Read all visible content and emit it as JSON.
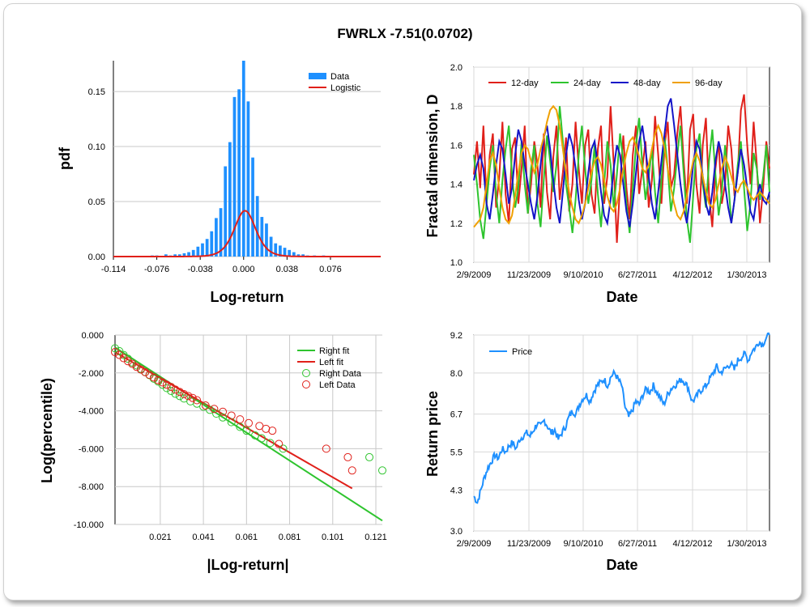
{
  "title": "FWRLX -7.51(0.0702)",
  "chart_data": [
    {
      "type": "bar",
      "name": "pdf",
      "xlabel": "Log-return",
      "ylabel": "pdf",
      "xticks": [
        "-0.114",
        "-0.076",
        "-0.038",
        "0.000",
        "0.038",
        "0.076"
      ],
      "xtick_values": [
        -0.114,
        -0.076,
        -0.038,
        0.0,
        0.038,
        0.076
      ],
      "yticks": [
        "0.00",
        "0.05",
        "0.10",
        "0.15"
      ],
      "ytick_values": [
        0.0,
        0.05,
        0.1,
        0.15
      ],
      "xlim": [
        -0.114,
        0.12
      ],
      "ylim": [
        0,
        0.178
      ],
      "legend": [
        "Data",
        "Logistic"
      ],
      "colors": {
        "Data": "#1e90ff",
        "Logistic": "#e0201a"
      },
      "bins": [
        {
          "x": -0.08,
          "y": 0.001
        },
        {
          "x": -0.076,
          "y": 0.001
        },
        {
          "x": -0.072,
          "y": 0.0
        },
        {
          "x": -0.068,
          "y": 0.002
        },
        {
          "x": -0.064,
          "y": 0.001
        },
        {
          "x": -0.06,
          "y": 0.002
        },
        {
          "x": -0.056,
          "y": 0.002
        },
        {
          "x": -0.052,
          "y": 0.003
        },
        {
          "x": -0.048,
          "y": 0.004
        },
        {
          "x": -0.044,
          "y": 0.006
        },
        {
          "x": -0.04,
          "y": 0.009
        },
        {
          "x": -0.036,
          "y": 0.012
        },
        {
          "x": -0.032,
          "y": 0.016
        },
        {
          "x": -0.028,
          "y": 0.023
        },
        {
          "x": -0.024,
          "y": 0.035
        },
        {
          "x": -0.02,
          "y": 0.044
        },
        {
          "x": -0.016,
          "y": 0.082
        },
        {
          "x": -0.012,
          "y": 0.104
        },
        {
          "x": -0.008,
          "y": 0.145
        },
        {
          "x": -0.004,
          "y": 0.152
        },
        {
          "x": 0.0,
          "y": 0.178
        },
        {
          "x": 0.004,
          "y": 0.141
        },
        {
          "x": 0.008,
          "y": 0.09
        },
        {
          "x": 0.012,
          "y": 0.055
        },
        {
          "x": 0.016,
          "y": 0.036
        },
        {
          "x": 0.02,
          "y": 0.03
        },
        {
          "x": 0.024,
          "y": 0.018
        },
        {
          "x": 0.028,
          "y": 0.012
        },
        {
          "x": 0.032,
          "y": 0.01
        },
        {
          "x": 0.036,
          "y": 0.008
        },
        {
          "x": 0.04,
          "y": 0.006
        },
        {
          "x": 0.044,
          "y": 0.004
        },
        {
          "x": 0.048,
          "y": 0.002
        },
        {
          "x": 0.052,
          "y": 0.002
        },
        {
          "x": 0.056,
          "y": 0.001
        },
        {
          "x": 0.062,
          "y": 0.001
        },
        {
          "x": 0.07,
          "y": 0.001
        }
      ],
      "bin_width": 0.0035,
      "logistic": {
        "mu": 0.0012,
        "s": 0.0063
      }
    },
    {
      "type": "line",
      "name": "fractal",
      "xlabel": "Date",
      "ylabel": "Fractal dimension, D",
      "xticks": [
        "2/9/2009",
        "11/23/2009",
        "9/10/2010",
        "6/27/2011",
        "4/12/2012",
        "1/30/2013"
      ],
      "yticks": [
        "1.0",
        "1.2",
        "1.4",
        "1.6",
        "1.8",
        "2.0"
      ],
      "ytick_values": [
        1.0,
        1.2,
        1.4,
        1.6,
        1.8,
        2.0
      ],
      "ylim": [
        1.0,
        2.0
      ],
      "xlim": [
        0,
        1096
      ],
      "xtick_values": [
        0,
        287,
        578,
        868,
        1158,
        1450
      ],
      "series": [
        {
          "name": "12-day",
          "color": "#e0201a",
          "values": [
            1.45,
            1.62,
            1.38,
            1.7,
            1.3,
            1.55,
            1.66,
            1.28,
            1.44,
            1.72,
            1.35,
            1.2,
            1.58,
            1.64,
            1.3,
            1.48,
            1.7,
            1.25,
            1.4,
            1.62,
            1.5,
            1.28,
            1.66,
            1.36,
            1.22,
            1.54,
            1.7,
            1.32,
            1.46,
            1.64,
            1.26,
            1.4,
            1.72,
            1.48,
            1.3,
            1.6,
            1.68,
            1.35,
            1.25,
            1.58,
            1.7,
            1.3,
            1.44,
            1.8,
            1.5,
            1.1,
            1.4,
            1.65,
            1.38,
            1.22,
            1.55,
            1.7,
            1.35,
            1.48,
            1.62,
            1.28,
            1.42,
            1.75,
            1.55,
            1.3,
            1.6,
            1.72,
            1.38,
            1.45,
            1.66,
            1.8,
            1.52,
            1.3,
            1.68,
            1.76,
            1.4,
            1.25,
            1.6,
            1.74,
            1.34,
            1.18,
            1.48,
            1.62,
            1.3,
            1.4,
            1.7,
            1.58,
            1.34,
            1.46,
            1.78,
            1.86,
            1.6,
            1.4,
            1.72,
            1.5,
            1.2,
            1.38,
            1.62,
            1.48
          ]
        },
        {
          "name": "24-day",
          "color": "#2ec42e",
          "values": [
            1.55,
            1.4,
            1.22,
            1.12,
            1.3,
            1.48,
            1.6,
            1.35,
            1.2,
            1.42,
            1.58,
            1.7,
            1.45,
            1.28,
            1.38,
            1.62,
            1.4,
            1.25,
            1.48,
            1.6,
            1.3,
            1.18,
            1.42,
            1.65,
            1.52,
            1.36,
            1.5,
            1.8,
            1.62,
            1.4,
            1.28,
            1.15,
            1.32,
            1.55,
            1.7,
            1.48,
            1.3,
            1.42,
            1.6,
            1.35,
            1.18,
            1.4,
            1.62,
            1.5,
            1.28,
            1.45,
            1.66,
            1.52,
            1.3,
            1.15,
            1.38,
            1.6,
            1.74,
            1.5,
            1.32,
            1.44,
            1.58,
            1.36,
            1.2,
            1.42,
            1.64,
            1.48,
            1.26,
            1.38,
            1.55,
            1.7,
            1.46,
            1.22,
            1.1,
            1.34,
            1.58,
            1.66,
            1.4,
            1.28,
            1.52,
            1.68,
            1.45,
            1.24,
            1.36,
            1.6,
            1.42,
            1.2,
            1.32,
            1.5,
            1.62,
            1.38,
            1.16,
            1.3,
            1.56,
            1.48,
            1.32,
            1.44,
            1.6,
            1.36
          ]
        },
        {
          "name": "48-day",
          "color": "#1414c8",
          "values": [
            1.42,
            1.5,
            1.55,
            1.48,
            1.3,
            1.22,
            1.35,
            1.5,
            1.62,
            1.58,
            1.45,
            1.3,
            1.38,
            1.55,
            1.68,
            1.62,
            1.5,
            1.4,
            1.3,
            1.22,
            1.34,
            1.5,
            1.64,
            1.7,
            1.58,
            1.42,
            1.28,
            1.2,
            1.36,
            1.55,
            1.66,
            1.6,
            1.48,
            1.32,
            1.22,
            1.3,
            1.46,
            1.58,
            1.62,
            1.5,
            1.36,
            1.24,
            1.2,
            1.32,
            1.48,
            1.6,
            1.55,
            1.4,
            1.26,
            1.18,
            1.3,
            1.46,
            1.62,
            1.7,
            1.58,
            1.44,
            1.3,
            1.22,
            1.36,
            1.52,
            1.66,
            1.8,
            1.84,
            1.7,
            1.55,
            1.4,
            1.28,
            1.2,
            1.34,
            1.5,
            1.62,
            1.58,
            1.44,
            1.3,
            1.24,
            1.36,
            1.52,
            1.62,
            1.55,
            1.4,
            1.28,
            1.2,
            1.32,
            1.46,
            1.58,
            1.5,
            1.38,
            1.26,
            1.22,
            1.34,
            1.4,
            1.32,
            1.3,
            1.36
          ]
        },
        {
          "name": "96-day",
          "color": "#f0a000",
          "values": [
            1.18,
            1.2,
            1.22,
            1.28,
            1.4,
            1.52,
            1.56,
            1.5,
            1.38,
            1.28,
            1.22,
            1.2,
            1.24,
            1.34,
            1.46,
            1.56,
            1.6,
            1.58,
            1.52,
            1.46,
            1.5,
            1.58,
            1.64,
            1.72,
            1.78,
            1.8,
            1.78,
            1.7,
            1.58,
            1.46,
            1.36,
            1.28,
            1.22,
            1.2,
            1.24,
            1.3,
            1.38,
            1.46,
            1.52,
            1.54,
            1.5,
            1.42,
            1.34,
            1.28,
            1.26,
            1.3,
            1.38,
            1.48,
            1.56,
            1.62,
            1.64,
            1.6,
            1.54,
            1.48,
            1.46,
            1.5,
            1.58,
            1.66,
            1.7,
            1.66,
            1.58,
            1.48,
            1.38,
            1.3,
            1.24,
            1.22,
            1.26,
            1.34,
            1.44,
            1.52,
            1.56,
            1.52,
            1.44,
            1.36,
            1.3,
            1.28,
            1.32,
            1.4,
            1.48,
            1.54,
            1.5,
            1.44,
            1.38,
            1.36,
            1.4,
            1.42,
            1.38,
            1.34,
            1.32,
            1.34,
            1.36,
            1.34,
            1.32,
            1.3
          ]
        }
      ]
    },
    {
      "type": "scatter",
      "name": "tails",
      "xlabel": "|Log-return|",
      "ylabel": "Log(percentile)",
      "xticks": [
        "0.021",
        "0.041",
        "0.061",
        "0.081",
        "0.101",
        "0.121"
      ],
      "xtick_values": [
        0.021,
        0.041,
        0.061,
        0.081,
        0.101,
        0.121
      ],
      "yticks": [
        "0.000",
        "-2.000",
        "-4.000",
        "-6.000",
        "-8.000",
        "-10.000"
      ],
      "ytick_values": [
        0,
        -2,
        -4,
        -6,
        -8,
        -10
      ],
      "xlim": [
        0.0,
        0.124
      ],
      "ylim": [
        -10.0,
        0.0
      ],
      "legend": [
        "Right fit",
        "Left fit",
        "Right Data",
        "Left Data"
      ],
      "colors": {
        "right": "#2ec42e",
        "left": "#e0201a"
      },
      "right_fit": [
        [
          0.0,
          -0.65
        ],
        [
          0.124,
          -9.8
        ]
      ],
      "left_fit": [
        [
          0.0,
          -0.9
        ],
        [
          0.11,
          -8.1
        ]
      ],
      "right_data": [
        [
          0.0,
          -0.7
        ],
        [
          0.002,
          -0.85
        ],
        [
          0.004,
          -1.05
        ],
        [
          0.006,
          -1.25
        ],
        [
          0.008,
          -1.45
        ],
        [
          0.01,
          -1.6
        ],
        [
          0.012,
          -1.78
        ],
        [
          0.014,
          -1.95
        ],
        [
          0.016,
          -2.12
        ],
        [
          0.018,
          -2.3
        ],
        [
          0.02,
          -2.45
        ],
        [
          0.022,
          -2.62
        ],
        [
          0.024,
          -2.8
        ],
        [
          0.026,
          -2.95
        ],
        [
          0.028,
          -3.1
        ],
        [
          0.03,
          -3.22
        ],
        [
          0.032,
          -3.35
        ],
        [
          0.035,
          -3.5
        ],
        [
          0.038,
          -3.62
        ],
        [
          0.041,
          -3.78
        ],
        [
          0.044,
          -3.95
        ],
        [
          0.047,
          -4.15
        ],
        [
          0.05,
          -4.35
        ],
        [
          0.054,
          -4.6
        ],
        [
          0.058,
          -4.85
        ],
        [
          0.061,
          -5.05
        ],
        [
          0.065,
          -5.3
        ],
        [
          0.068,
          -5.45
        ],
        [
          0.072,
          -5.7
        ],
        [
          0.078,
          -6.0
        ],
        [
          0.118,
          -6.45
        ],
        [
          0.124,
          -7.15
        ]
      ],
      "left_data": [
        [
          0.0,
          -0.9
        ],
        [
          0.002,
          -1.05
        ],
        [
          0.004,
          -1.22
        ],
        [
          0.006,
          -1.38
        ],
        [
          0.008,
          -1.52
        ],
        [
          0.01,
          -1.68
        ],
        [
          0.012,
          -1.82
        ],
        [
          0.014,
          -1.96
        ],
        [
          0.016,
          -2.1
        ],
        [
          0.018,
          -2.24
        ],
        [
          0.02,
          -2.38
        ],
        [
          0.022,
          -2.5
        ],
        [
          0.024,
          -2.62
        ],
        [
          0.026,
          -2.74
        ],
        [
          0.028,
          -2.88
        ],
        [
          0.03,
          -3.0
        ],
        [
          0.032,
          -3.12
        ],
        [
          0.034,
          -3.22
        ],
        [
          0.036,
          -3.32
        ],
        [
          0.038,
          -3.44
        ],
        [
          0.042,
          -3.72
        ],
        [
          0.046,
          -3.9
        ],
        [
          0.05,
          -4.05
        ],
        [
          0.054,
          -4.25
        ],
        [
          0.058,
          -4.45
        ],
        [
          0.062,
          -4.65
        ],
        [
          0.067,
          -4.8
        ],
        [
          0.07,
          -4.95
        ],
        [
          0.073,
          -5.05
        ],
        [
          0.076,
          -5.75
        ],
        [
          0.098,
          -6.0
        ],
        [
          0.108,
          -6.45
        ],
        [
          0.11,
          -7.15
        ]
      ]
    },
    {
      "type": "line",
      "name": "price",
      "xlabel": "Date",
      "ylabel": "Return price",
      "xticks": [
        "2/9/2009",
        "11/23/2009",
        "9/10/2010",
        "6/27/2011",
        "4/12/2012",
        "1/30/2013"
      ],
      "yticks": [
        "3.0",
        "4.3",
        "5.5",
        "6.7",
        "8.0",
        "9.2"
      ],
      "ytick_values": [
        3.0,
        4.3,
        5.5,
        6.7,
        8.0,
        9.2
      ],
      "ylim": [
        3.0,
        9.2
      ],
      "legend": [
        "Price"
      ],
      "color": "#1e90ff",
      "values": [
        4.1,
        3.9,
        4.3,
        4.7,
        5.0,
        5.2,
        5.4,
        5.3,
        5.6,
        5.5,
        5.7,
        5.8,
        5.6,
        5.9,
        6.0,
        6.1,
        6.0,
        6.2,
        6.4,
        6.3,
        6.5,
        6.3,
        6.1,
        6.2,
        5.9,
        6.1,
        6.3,
        6.6,
        6.8,
        6.7,
        7.0,
        7.2,
        7.3,
        7.1,
        7.4,
        7.6,
        7.7,
        7.8,
        7.6,
        7.9,
        8.0,
        7.8,
        7.6,
        6.9,
        6.6,
        6.8,
        7.1,
        7.0,
        7.3,
        7.5,
        7.4,
        7.6,
        7.4,
        7.2,
        7.0,
        7.3,
        7.5,
        7.6,
        7.7,
        7.8,
        7.7,
        7.5,
        7.1,
        7.2,
        7.4,
        7.5,
        7.6,
        7.8,
        8.0,
        8.2,
        8.0,
        8.1,
        8.2,
        8.3,
        8.1,
        8.4,
        8.5,
        8.6,
        8.4,
        8.7,
        8.8,
        9.0,
        8.9,
        9.1,
        9.2
      ]
    }
  ]
}
